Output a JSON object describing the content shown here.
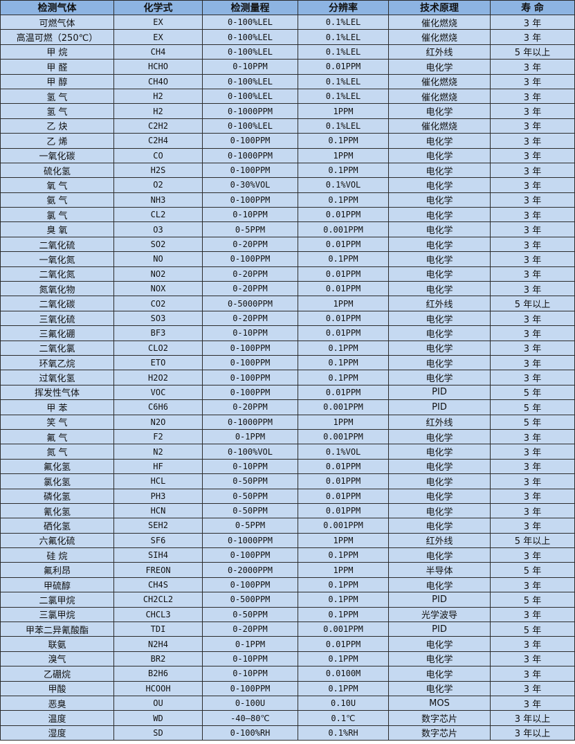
{
  "colors": {
    "header_bg": "#8DB4E2",
    "row_bg": "#C5D9F1",
    "border": "#2b2b2b"
  },
  "headers": [
    "检测气体",
    "化学式",
    "检测量程",
    "分辨率",
    "技术原理",
    "寿 命"
  ],
  "rows": [
    [
      "可燃气体",
      "EX",
      "0-100%LEL",
      "0.1%LEL",
      "催化燃烧",
      "3 年"
    ],
    [
      "高温可燃（250℃）",
      "EX",
      "0-100%LEL",
      "0.1%LEL",
      "催化燃烧",
      "3 年"
    ],
    [
      "甲 烷",
      "CH4",
      "0-100%LEL",
      "0.1%LEL",
      "红外线",
      "5 年以上"
    ],
    [
      "甲 醛",
      "HCHO",
      "0-10PPM",
      "0.01PPM",
      "电化学",
      "3 年"
    ],
    [
      "甲 醇",
      "CH4O",
      "0-100%LEL",
      "0.1%LEL",
      "催化燃烧",
      "3 年"
    ],
    [
      "氢 气",
      "H2",
      "0-100%LEL",
      "0.1%LEL",
      "催化燃烧",
      "3 年"
    ],
    [
      "氢 气",
      "H2",
      "0-1000PPM",
      "1PPM",
      "电化学",
      "3 年"
    ],
    [
      "乙 炔",
      "C2H2",
      "0-100%LEL",
      "0.1%LEL",
      "催化燃烧",
      "3 年"
    ],
    [
      "乙 烯",
      "C2H4",
      "0-100PPM",
      "0.1PPM",
      "电化学",
      "3 年"
    ],
    [
      "一氧化碳",
      "CO",
      "0-1000PPM",
      "1PPM",
      "电化学",
      "3 年"
    ],
    [
      "硫化氢",
      "H2S",
      "0-100PPM",
      "0.1PPM",
      "电化学",
      "3 年"
    ],
    [
      "氧 气",
      "O2",
      "0-30%VOL",
      "0.1%VOL",
      "电化学",
      "3 年"
    ],
    [
      "氨 气",
      "NH3",
      "0-100PPM",
      "0.1PPM",
      "电化学",
      "3 年"
    ],
    [
      "氯 气",
      "CL2",
      "0-10PPM",
      "0.01PPM",
      "电化学",
      "3 年"
    ],
    [
      "臭 氧",
      "O3",
      "0-5PPM",
      "0.001PPM",
      "电化学",
      "3 年"
    ],
    [
      "二氧化硫",
      "SO2",
      "0-20PPM",
      "0.01PPM",
      "电化学",
      "3 年"
    ],
    [
      "一氧化氮",
      "NO",
      "0-100PPM",
      "0.1PPM",
      "电化学",
      "3 年"
    ],
    [
      "二氧化氮",
      "NO2",
      "0-20PPM",
      "0.01PPM",
      "电化学",
      "3 年"
    ],
    [
      "氮氧化物",
      "NOX",
      "0-20PPM",
      "0.01PPM",
      "电化学",
      "3 年"
    ],
    [
      "二氧化碳",
      "CO2",
      "0-5000PPM",
      "1PPM",
      "红外线",
      "5 年以上"
    ],
    [
      "三氧化硫",
      "SO3",
      "0-20PPM",
      "0.01PPM",
      "电化学",
      "3 年"
    ],
    [
      "三氟化硼",
      "BF3",
      "0-10PPM",
      "0.01PPM",
      "电化学",
      "3 年"
    ],
    [
      "二氧化氯",
      "CLO2",
      "0-100PPM",
      "0.1PPM",
      "电化学",
      "3 年"
    ],
    [
      "环氧乙烷",
      "ETO",
      "0-100PPM",
      "0.1PPM",
      "电化学",
      "3 年"
    ],
    [
      "过氧化氢",
      "H2O2",
      "0-100PPM",
      "0.1PPM",
      "电化学",
      "3 年"
    ],
    [
      "挥发性气体",
      "VOC",
      "0-100PPM",
      "0.01PPM",
      "PID",
      "5 年"
    ],
    [
      "甲 苯",
      "C6H6",
      "0-20PPM",
      "0.001PPM",
      "PID",
      "5 年"
    ],
    [
      "笑 气",
      "N2O",
      "0-1000PPM",
      "1PPM",
      "红外线",
      "5 年"
    ],
    [
      "氟 气",
      "F2",
      "0-1PPM",
      "0.001PPM",
      "电化学",
      "3 年"
    ],
    [
      "氮 气",
      "N2",
      "0-100%VOL",
      "0.1%VOL",
      "电化学",
      "3 年"
    ],
    [
      "氟化氢",
      "HF",
      "0-10PPM",
      "0.01PPM",
      "电化学",
      "3 年"
    ],
    [
      "氯化氢",
      "HCL",
      "0-50PPM",
      "0.01PPM",
      "电化学",
      "3 年"
    ],
    [
      "磷化氢",
      "PH3",
      "0-50PPM",
      "0.01PPM",
      "电化学",
      "3 年"
    ],
    [
      "氰化氢",
      "HCN",
      "0-50PPM",
      "0.01PPM",
      "电化学",
      "3 年"
    ],
    [
      "硒化氢",
      "SEH2",
      "0-5PPM",
      "0.001PPM",
      "电化学",
      "3 年"
    ],
    [
      "六氟化硫",
      "SF6",
      "0-1000PPM",
      "1PPM",
      "红外线",
      "5 年以上"
    ],
    [
      "硅 烷",
      "SIH4",
      "0-100PPM",
      "0.1PPM",
      "电化学",
      "3 年"
    ],
    [
      "氟利昂",
      "FREON",
      "0-2000PPM",
      "1PPM",
      "半导体",
      "5 年"
    ],
    [
      "甲硫醇",
      "CH4S",
      "0-100PPM",
      "0.1PPM",
      "电化学",
      "3 年"
    ],
    [
      "二氯甲烷",
      "CH2CL2",
      "0-500PPM",
      "0.1PPM",
      "PID",
      "5 年"
    ],
    [
      "三氯甲烷",
      "CHCL3",
      "0-50PPM",
      "0.1PPM",
      "光学波导",
      "3 年"
    ],
    [
      "甲苯二异氰酸酯",
      "TDI",
      "0-20PPM",
      "0.001PPM",
      "PID",
      "5 年"
    ],
    [
      "联氨",
      "N2H4",
      "0-1PPM",
      "0.01PPM",
      "电化学",
      "3 年"
    ],
    [
      "溴气",
      "BR2",
      "0-10PPM",
      "0.1PPM",
      "电化学",
      "3 年"
    ],
    [
      "乙硼烷",
      "B2H6",
      "0-10PPM",
      "0.0100M",
      "电化学",
      "3 年"
    ],
    [
      "甲酸",
      "HCOOH",
      "0-100PPM",
      "0.1PPM",
      "电化学",
      "3 年"
    ],
    [
      "恶臭",
      "OU",
      "0-100U",
      "0.10U",
      "MOS",
      "3 年"
    ],
    [
      "温度",
      "WD",
      "-40—80℃",
      "0.1℃",
      "数字芯片",
      "3 年以上"
    ],
    [
      "湿度",
      "SD",
      "0-100%RH",
      "0.1%RH",
      "数字芯片",
      "3 年以上"
    ]
  ]
}
